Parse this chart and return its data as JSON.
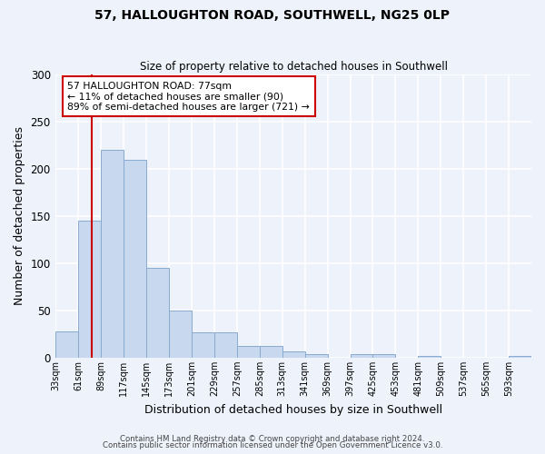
{
  "title": "57, HALLOUGHTON ROAD, SOUTHWELL, NG25 0LP",
  "subtitle": "Size of property relative to detached houses in Southwell",
  "xlabel": "Distribution of detached houses by size in Southwell",
  "ylabel": "Number of detached properties",
  "bar_color": "#c8d8ee",
  "bar_edge_color": "#8aaad0",
  "background_color": "#eef2fa",
  "grid_color": "#ffffff",
  "bin_labels": [
    "33sqm",
    "61sqm",
    "89sqm",
    "117sqm",
    "145sqm",
    "173sqm",
    "201sqm",
    "229sqm",
    "257sqm",
    "285sqm",
    "313sqm",
    "341sqm",
    "369sqm",
    "397sqm",
    "425sqm",
    "453sqm",
    "481sqm",
    "509sqm",
    "537sqm",
    "565sqm",
    "593sqm"
  ],
  "bar_heights": [
    28,
    145,
    220,
    210,
    95,
    50,
    27,
    27,
    12,
    12,
    7,
    4,
    0,
    4,
    4,
    0,
    2,
    0,
    0,
    0,
    2
  ],
  "property_line_x": 77,
  "bin_edges_numeric": [
    33,
    61,
    89,
    117,
    145,
    173,
    201,
    229,
    257,
    285,
    313,
    341,
    369,
    397,
    425,
    453,
    481,
    509,
    537,
    565,
    593,
    621
  ],
  "annotation_text": "57 HALLOUGHTON ROAD: 77sqm\n← 11% of detached houses are smaller (90)\n89% of semi-detached houses are larger (721) →",
  "annotation_box_color": "#ffffff",
  "annotation_box_edge_color": "#cc0000",
  "vline_color": "#cc0000",
  "ylim": [
    0,
    300
  ],
  "yticks": [
    0,
    50,
    100,
    150,
    200,
    250,
    300
  ],
  "footer_line1": "Contains HM Land Registry data © Crown copyright and database right 2024.",
  "footer_line2": "Contains public sector information licensed under the Open Government Licence v3.0."
}
